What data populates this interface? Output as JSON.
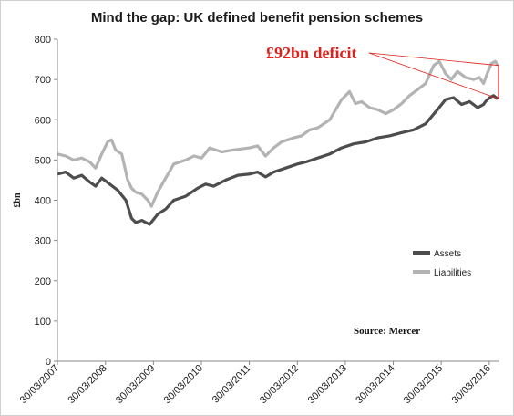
{
  "chart_data": {
    "type": "line",
    "title": "Mind the gap: UK defined benefit pension schemes",
    "ylabel": "£bn",
    "xlabel": "",
    "ylim": [
      0,
      800
    ],
    "yticks": [
      0,
      100,
      200,
      300,
      400,
      500,
      600,
      700,
      800
    ],
    "x_tick_labels": [
      "30/03/2007",
      "30/03/2008",
      "30/03/2009",
      "30/03/2010",
      "30/03/2011",
      "30/03/2012",
      "30/03/2013",
      "30/03/2014",
      "30/03/2015",
      "30/03/2016"
    ],
    "grid": false,
    "legend_position": "bottom-right",
    "annotation": "£92bn deficit",
    "source": "Source: Mercer",
    "series": [
      {
        "name": "Assets",
        "color": "#4d4d4f",
        "points": [
          [
            "2007-03-30",
            465
          ],
          [
            "2007-06-01",
            470
          ],
          [
            "2007-08-01",
            455
          ],
          [
            "2007-10-01",
            462
          ],
          [
            "2007-12-01",
            445
          ],
          [
            "2008-01-15",
            435
          ],
          [
            "2008-03-01",
            455
          ],
          [
            "2008-05-01",
            440
          ],
          [
            "2008-07-01",
            425
          ],
          [
            "2008-09-01",
            400
          ],
          [
            "2008-10-15",
            355
          ],
          [
            "2008-11-15",
            345
          ],
          [
            "2009-01-01",
            350
          ],
          [
            "2009-03-01",
            340
          ],
          [
            "2009-05-01",
            365
          ],
          [
            "2009-07-01",
            378
          ],
          [
            "2009-09-01",
            400
          ],
          [
            "2009-12-01",
            410
          ],
          [
            "2010-03-01",
            430
          ],
          [
            "2010-05-01",
            440
          ],
          [
            "2010-07-01",
            435
          ],
          [
            "2010-10-01",
            450
          ],
          [
            "2011-01-01",
            462
          ],
          [
            "2011-03-30",
            465
          ],
          [
            "2011-06-01",
            470
          ],
          [
            "2011-08-01",
            458
          ],
          [
            "2011-10-01",
            470
          ],
          [
            "2012-01-01",
            480
          ],
          [
            "2012-03-30",
            490
          ],
          [
            "2012-06-01",
            495
          ],
          [
            "2012-09-01",
            505
          ],
          [
            "2012-12-01",
            515
          ],
          [
            "2013-03-01",
            530
          ],
          [
            "2013-06-01",
            540
          ],
          [
            "2013-09-01",
            545
          ],
          [
            "2013-12-01",
            555
          ],
          [
            "2014-03-01",
            560
          ],
          [
            "2014-06-01",
            568
          ],
          [
            "2014-09-01",
            575
          ],
          [
            "2014-12-01",
            590
          ],
          [
            "2015-03-01",
            625
          ],
          [
            "2015-05-01",
            650
          ],
          [
            "2015-07-01",
            655
          ],
          [
            "2015-09-01",
            638
          ],
          [
            "2015-11-01",
            645
          ],
          [
            "2016-01-01",
            630
          ],
          [
            "2016-02-15",
            638
          ],
          [
            "2016-03-01",
            645
          ],
          [
            "2016-04-01",
            655
          ],
          [
            "2016-05-01",
            660
          ],
          [
            "2016-06-01",
            652
          ]
        ]
      },
      {
        "name": "Liabilities",
        "color": "#b3b3b3",
        "points": [
          [
            "2007-03-30",
            515
          ],
          [
            "2007-06-01",
            510
          ],
          [
            "2007-08-01",
            500
          ],
          [
            "2007-10-01",
            505
          ],
          [
            "2007-12-01",
            495
          ],
          [
            "2008-01-15",
            480
          ],
          [
            "2008-03-01",
            515
          ],
          [
            "2008-04-15",
            545
          ],
          [
            "2008-05-15",
            550
          ],
          [
            "2008-06-15",
            525
          ],
          [
            "2008-08-01",
            515
          ],
          [
            "2008-09-15",
            450
          ],
          [
            "2008-10-15",
            430
          ],
          [
            "2008-11-15",
            420
          ],
          [
            "2009-01-01",
            415
          ],
          [
            "2009-02-15",
            400
          ],
          [
            "2009-03-15",
            385
          ],
          [
            "2009-05-01",
            420
          ],
          [
            "2009-07-01",
            455
          ],
          [
            "2009-09-01",
            490
          ],
          [
            "2009-12-01",
            500
          ],
          [
            "2010-02-01",
            510
          ],
          [
            "2010-04-01",
            505
          ],
          [
            "2010-06-01",
            530
          ],
          [
            "2010-09-01",
            520
          ],
          [
            "2010-12-01",
            525
          ],
          [
            "2011-03-30",
            530
          ],
          [
            "2011-06-01",
            535
          ],
          [
            "2011-08-01",
            510
          ],
          [
            "2011-10-01",
            530
          ],
          [
            "2011-12-01",
            545
          ],
          [
            "2012-03-01",
            555
          ],
          [
            "2012-05-01",
            560
          ],
          [
            "2012-07-01",
            575
          ],
          [
            "2012-09-01",
            580
          ],
          [
            "2012-12-01",
            600
          ],
          [
            "2013-03-01",
            650
          ],
          [
            "2013-05-01",
            670
          ],
          [
            "2013-06-15",
            640
          ],
          [
            "2013-08-01",
            645
          ],
          [
            "2013-10-01",
            630
          ],
          [
            "2013-12-01",
            625
          ],
          [
            "2014-02-01",
            615
          ],
          [
            "2014-04-01",
            625
          ],
          [
            "2014-06-01",
            640
          ],
          [
            "2014-08-01",
            660
          ],
          [
            "2014-10-01",
            675
          ],
          [
            "2014-12-01",
            690
          ],
          [
            "2015-02-01",
            735
          ],
          [
            "2015-03-15",
            745
          ],
          [
            "2015-05-01",
            715
          ],
          [
            "2015-06-15",
            700
          ],
          [
            "2015-08-01",
            720
          ],
          [
            "2015-10-01",
            705
          ],
          [
            "2015-12-01",
            700
          ],
          [
            "2016-01-15",
            705
          ],
          [
            "2016-02-15",
            690
          ],
          [
            "2016-03-15",
            715
          ],
          [
            "2016-04-15",
            740
          ],
          [
            "2016-05-15",
            745
          ],
          [
            "2016-06-01",
            735
          ]
        ]
      }
    ]
  }
}
